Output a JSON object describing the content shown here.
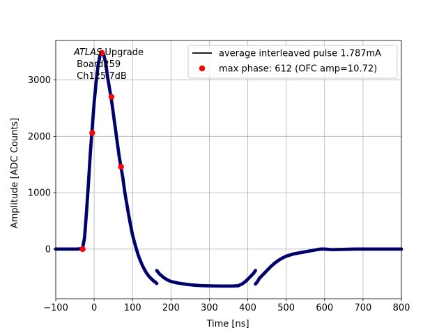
{
  "chart_data": {
    "type": "scatter",
    "title": "",
    "xlabel": "Time [ns]",
    "ylabel": "Amplitude [ADC Counts]",
    "xlim": [
      -100,
      800
    ],
    "ylim": [
      -880,
      3700
    ],
    "xticks": [
      -100,
      0,
      100,
      200,
      300,
      400,
      500,
      600,
      700,
      800
    ],
    "yticks": [
      0,
      1000,
      2000,
      3000
    ],
    "grid": true,
    "legend_position": "top-right",
    "annotation": {
      "line1_italic": "ATLAS",
      "line1_rest": " Upgrade",
      "line2": " Board259",
      "line3": " Ch125 7dB"
    },
    "series": [
      {
        "name": "average interleaved pulse 1.787mA",
        "kind": "line-with-markers",
        "line_color": "#000000",
        "marker_color": "#00008b",
        "points": [
          [
            -100,
            0
          ],
          [
            -80,
            0
          ],
          [
            -60,
            0
          ],
          [
            -45,
            0
          ],
          [
            -35,
            5
          ],
          [
            -30,
            20
          ],
          [
            -25,
            200
          ],
          [
            -20,
            650
          ],
          [
            -15,
            1150
          ],
          [
            -10,
            1700
          ],
          [
            -5,
            2150
          ],
          [
            0,
            2600
          ],
          [
            5,
            2950
          ],
          [
            10,
            3250
          ],
          [
            15,
            3430
          ],
          [
            20,
            3500
          ],
          [
            25,
            3450
          ],
          [
            30,
            3300
          ],
          [
            35,
            3050
          ],
          [
            40,
            2850
          ],
          [
            45,
            2650
          ],
          [
            50,
            2400
          ],
          [
            55,
            2150
          ],
          [
            60,
            1900
          ],
          [
            65,
            1650
          ],
          [
            70,
            1450
          ],
          [
            75,
            1250
          ],
          [
            80,
            1000
          ],
          [
            85,
            800
          ],
          [
            90,
            600
          ],
          [
            95,
            420
          ],
          [
            100,
            250
          ],
          [
            105,
            120
          ],
          [
            110,
            0
          ],
          [
            115,
            -110
          ],
          [
            120,
            -200
          ],
          [
            125,
            -280
          ],
          [
            130,
            -350
          ],
          [
            135,
            -410
          ],
          [
            140,
            -460
          ],
          [
            145,
            -500
          ],
          [
            150,
            -535
          ],
          [
            155,
            -565
          ],
          [
            160,
            -590
          ],
          [
            163,
            -610
          ],
          [
            163,
            -380
          ],
          [
            170,
            -440
          ],
          [
            180,
            -500
          ],
          [
            190,
            -545
          ],
          [
            200,
            -575
          ],
          [
            220,
            -605
          ],
          [
            240,
            -625
          ],
          [
            260,
            -640
          ],
          [
            280,
            -648
          ],
          [
            300,
            -652
          ],
          [
            320,
            -655
          ],
          [
            340,
            -656
          ],
          [
            360,
            -656
          ],
          [
            375,
            -650
          ],
          [
            385,
            -620
          ],
          [
            395,
            -570
          ],
          [
            405,
            -500
          ],
          [
            415,
            -430
          ],
          [
            420,
            -380
          ],
          [
            420,
            -620
          ],
          [
            425,
            -580
          ],
          [
            430,
            -520
          ],
          [
            440,
            -450
          ],
          [
            450,
            -380
          ],
          [
            460,
            -310
          ],
          [
            470,
            -250
          ],
          [
            480,
            -200
          ],
          [
            490,
            -160
          ],
          [
            500,
            -125
          ],
          [
            520,
            -85
          ],
          [
            540,
            -60
          ],
          [
            560,
            -35
          ],
          [
            580,
            -10
          ],
          [
            590,
            0
          ],
          [
            600,
            0
          ],
          [
            620,
            -10
          ],
          [
            650,
            -5
          ],
          [
            680,
            0
          ],
          [
            700,
            0
          ],
          [
            750,
            0
          ],
          [
            800,
            0
          ]
        ]
      },
      {
        "name": "max phase: 612 (OFC amp=10.72)",
        "kind": "markers",
        "marker_color": "#ff0000",
        "points": [
          [
            -30,
            0
          ],
          [
            -5,
            2060
          ],
          [
            20,
            3480
          ],
          [
            45,
            2700
          ],
          [
            70,
            1460
          ]
        ]
      }
    ]
  }
}
